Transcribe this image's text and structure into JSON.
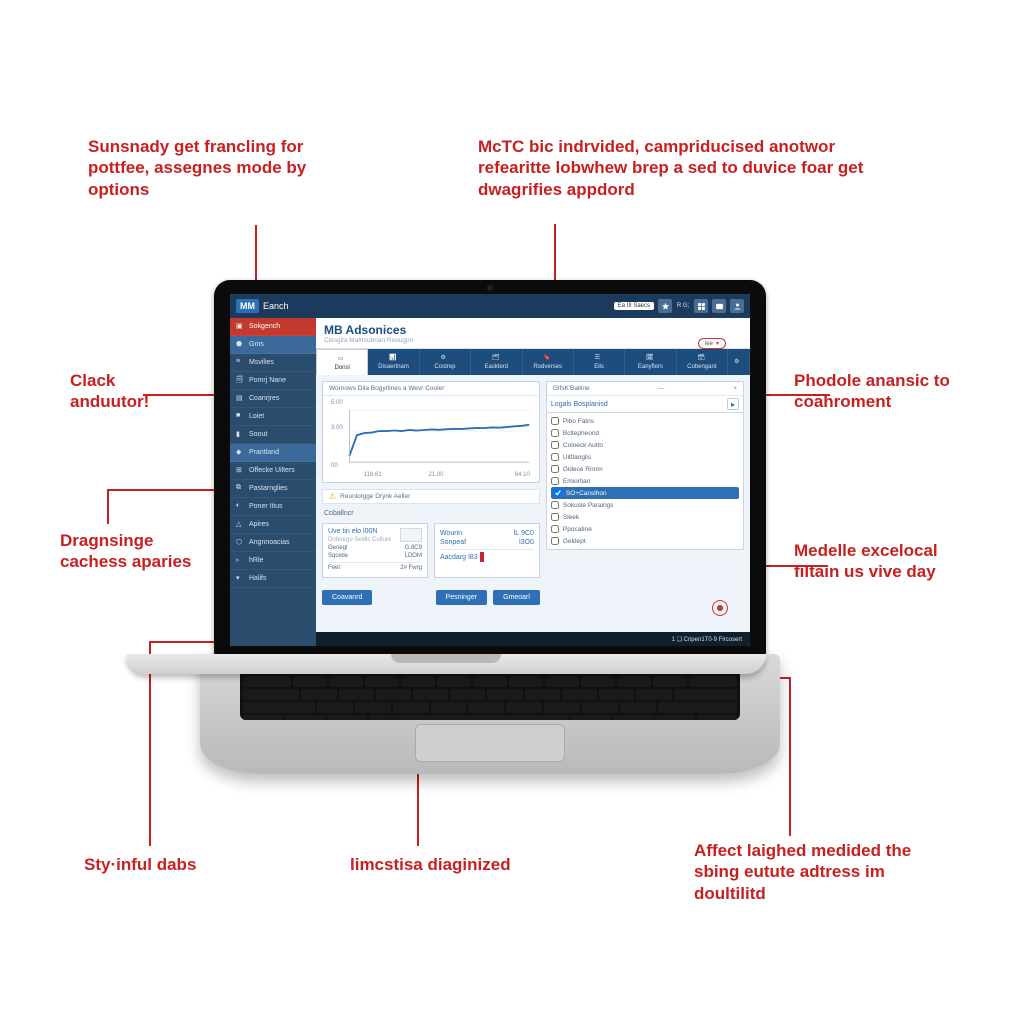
{
  "colors": {
    "accent_red": "#c82020",
    "sidebar_bg": "#2a4d6e",
    "sidebar_active": "#c23a2e",
    "topbar_bg": "#1c3a5b",
    "tabstrip_bg": "#1d4d7d",
    "link_blue": "#2e6fb5",
    "panel_border": "#c8d4e4",
    "screen_bg": "#eef4fa",
    "status_bg": "#0f1f2b",
    "grid": "#e0e6ef",
    "chart_line": "#2e6fb5"
  },
  "callouts": {
    "top_left": "Sunsnady get francling for pottfee, assegnes mode by options",
    "top_right": "McTC bic indrvided, campriducised anotwor refearitte lobwhew brep a sed to duvice foar get dwagrifies appdord",
    "clack": "Clack anduutor!",
    "phodole": "Phodole anansic to coahroment",
    "dragnsinge": "Dragnsinge cachess aparies",
    "medelle": "Medelle excelocal filtain us vive day",
    "styinful": "Sty·inful dabs",
    "limcstisa": "limcstisa diaginized",
    "affect": "Affect laighed medided the sbing eutute adtress im doultilitd"
  },
  "topbar": {
    "logo": "MM",
    "title": "Eanch",
    "badge": "Ea III Saecs"
  },
  "sidebar": {
    "items": [
      {
        "label": "Sokgench",
        "active": true
      },
      {
        "label": "Gms",
        "highlight": true
      },
      {
        "label": "Msvilies"
      },
      {
        "label": "Pomrj Nane"
      },
      {
        "label": "Coanrjres"
      },
      {
        "label": "Loiet"
      },
      {
        "label": "Soout"
      },
      {
        "label": "Prantland",
        "highlight": true
      },
      {
        "label": "Offecke Uilters"
      },
      {
        "label": "Pastarnglies"
      },
      {
        "label": "Poner Itius"
      },
      {
        "label": "Apires"
      },
      {
        "label": "Angnnoacias"
      },
      {
        "label": "hRle"
      },
      {
        "label": "Halifs"
      }
    ]
  },
  "page": {
    "title": "MB Adsonices",
    "subtitle": "Clesgita Malrtsubrian Reougpn",
    "live": "lee"
  },
  "tabs": [
    {
      "label": "Donsl"
    },
    {
      "label": "Disaertnam"
    },
    {
      "label": "Costrep"
    },
    {
      "label": "Easkterd"
    },
    {
      "label": "Rodverses"
    },
    {
      "label": "Eils"
    },
    {
      "label": "Eanyflers"
    },
    {
      "label": "Cobengant"
    }
  ],
  "chart": {
    "title": "Wornows Dila Bogyrlines a Wevr Cooler",
    "type": "line",
    "xlim": [
      0,
      5
    ],
    "ylim": [
      0,
      500
    ],
    "yticks": [
      {
        "v": 500,
        "l": "5.00"
      },
      {
        "v": 300,
        "l": "3.00"
      },
      {
        "v": 0,
        "l": "00"
      }
    ],
    "xticks": [
      {
        "v": 0.4,
        "l": "118.61"
      },
      {
        "v": 2.2,
        "l": "21.00"
      },
      {
        "v": 4.6,
        "l": "64.10"
      }
    ],
    "grid_color": "#e0e6ef",
    "line_color": "#2e6fb5",
    "line_width": 2,
    "series": [
      60,
      260,
      280,
      285,
      300,
      300,
      305,
      300,
      310,
      305,
      310,
      315,
      312,
      318,
      320,
      320,
      325,
      330,
      328,
      335,
      332,
      338,
      345,
      350,
      360
    ]
  },
  "hint": "Reunlotgge Drynk Aeller",
  "coball": "Coballncr",
  "cards": [
    {
      "title": "Uve tin elo l00N",
      "sub": "Dnterego Setills Culture",
      "rows": [
        [
          "Geoegl",
          "G.8C9"
        ],
        [
          "Sqcetie",
          "LDOM"
        ]
      ],
      "foot_l": "Feet",
      "foot_m": "2#   Fwrg"
    },
    {
      "title": "<I5 3 38·0",
      "rows": [
        [
          "Wourin",
          "lL.9C0"
        ],
        [
          "Sonpeaf",
          "l3O0"
        ]
      ],
      "foot": "Aacdarg I83"
    }
  ],
  "buttons": {
    "primary": "Coavanrd",
    "secondary": "Pesninger",
    "tertiary": "Gmeoarl"
  },
  "checklist": {
    "header": "GlfsK'Balline",
    "title": "Logals Bosplanisd",
    "items": [
      {
        "label": "Pibo Fatns"
      },
      {
        "label": "Bcltepheond"
      },
      {
        "label": "Coloeck Autto"
      },
      {
        "label": "Uittlanglis"
      },
      {
        "label": "Gidece Rnnm"
      },
      {
        "label": "Emiortian"
      },
      {
        "label": "SO+Canslhon",
        "selected": true
      },
      {
        "label": "Sokusle Paraings"
      },
      {
        "label": "Sleek"
      },
      {
        "label": "Ppocatine"
      },
      {
        "label": "Geldept"
      }
    ]
  },
  "status": "1 ❑ Cripen1T0·9 Flrcosert"
}
